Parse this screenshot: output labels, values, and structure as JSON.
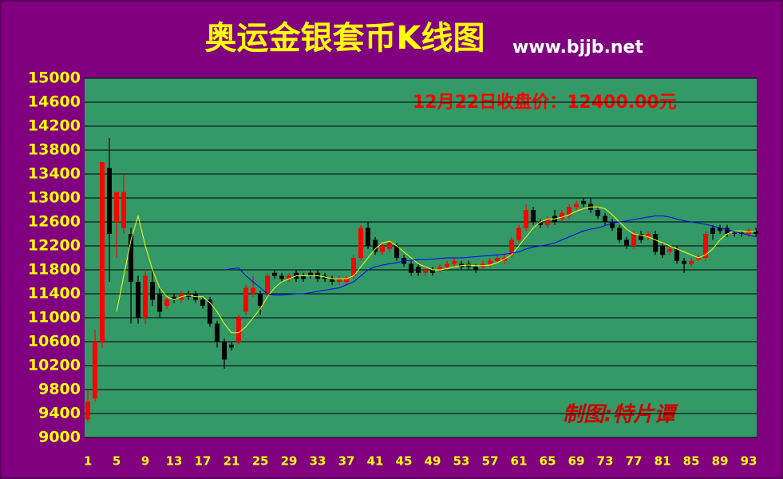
{
  "chart_data": {
    "type": "candlestick",
    "title": "奥运金银套币K线图",
    "subtitle": "www.bjjb.net",
    "annotation": "12月22日收盘价：12400.00元",
    "signature": "制图:特片谭",
    "up_color": "#ff0000",
    "down_color": "#000000",
    "x": [
      1,
      2,
      3,
      4,
      5,
      6,
      7,
      8,
      9,
      10,
      11,
      12,
      13,
      14,
      15,
      16,
      17,
      18,
      19,
      20,
      21,
      22,
      23,
      24,
      25,
      26,
      27,
      28,
      29,
      30,
      31,
      32,
      33,
      34,
      35,
      36,
      37,
      38,
      39,
      40,
      41,
      42,
      43,
      44,
      45,
      46,
      47,
      48,
      49,
      50,
      51,
      52,
      53,
      54,
      55,
      56,
      57,
      58,
      59,
      60,
      61,
      62,
      63,
      64,
      65,
      66,
      67,
      68,
      69,
      70,
      71,
      72,
      73,
      74,
      75,
      76,
      77,
      78,
      79,
      80,
      81,
      82,
      83,
      84,
      85,
      86,
      87,
      88,
      89,
      90,
      91,
      92,
      93,
      94
    ],
    "ohlc": [
      [
        9300,
        9800,
        9250,
        9600
      ],
      [
        9650,
        10800,
        9600,
        10600
      ],
      [
        10600,
        13600,
        10500,
        13600
      ],
      [
        13500,
        14000,
        11600,
        12400
      ],
      [
        12600,
        13100,
        12000,
        13100
      ],
      [
        12500,
        13400,
        12400,
        13100
      ],
      [
        12400,
        12500,
        10900,
        11600
      ],
      [
        11600,
        11700,
        10900,
        11000
      ],
      [
        11000,
        11800,
        10900,
        11700
      ],
      [
        11600,
        11800,
        11200,
        11300
      ],
      [
        11400,
        11500,
        11000,
        11100
      ],
      [
        11200,
        11350,
        11150,
        11300
      ],
      [
        11350,
        11400,
        11250,
        11300
      ],
      [
        11300,
        11450,
        11250,
        11400
      ],
      [
        11400,
        11450,
        11300,
        11350
      ],
      [
        11400,
        11450,
        11250,
        11300
      ],
      [
        11300,
        11350,
        11150,
        11200
      ],
      [
        11300,
        11350,
        10850,
        10900
      ],
      [
        10900,
        10950,
        10500,
        10600
      ],
      [
        10600,
        10650,
        10150,
        10300
      ],
      [
        10550,
        10600,
        10450,
        10500
      ],
      [
        10600,
        11050,
        10550,
        11000
      ],
      [
        11100,
        11550,
        11050,
        11500
      ],
      [
        11400,
        11700,
        11350,
        11500
      ],
      [
        11400,
        11450,
        11050,
        11200
      ],
      [
        11400,
        11750,
        11350,
        11700
      ],
      [
        11750,
        11800,
        11650,
        11700
      ],
      [
        11700,
        11750,
        11600,
        11650
      ],
      [
        11650,
        11750,
        11600,
        11700
      ],
      [
        11750,
        11800,
        11600,
        11650
      ],
      [
        11700,
        11750,
        11600,
        11650
      ],
      [
        11750,
        11800,
        11650,
        11700
      ],
      [
        11750,
        11800,
        11600,
        11650
      ],
      [
        11700,
        11750,
        11600,
        11650
      ],
      [
        11650,
        11700,
        11550,
        11600
      ],
      [
        11600,
        11700,
        11550,
        11650
      ],
      [
        11600,
        11700,
        11550,
        11650
      ],
      [
        11700,
        12050,
        11650,
        12000
      ],
      [
        12000,
        12550,
        11950,
        12500
      ],
      [
        12500,
        12600,
        12150,
        12200
      ],
      [
        12300,
        12350,
        12050,
        12100
      ],
      [
        12100,
        12250,
        12050,
        12200
      ],
      [
        12150,
        12300,
        12100,
        12250
      ],
      [
        12200,
        12250,
        11950,
        12000
      ],
      [
        12000,
        12050,
        11850,
        11900
      ],
      [
        11900,
        11950,
        11700,
        11750
      ],
      [
        11850,
        11900,
        11700,
        11750
      ],
      [
        11750,
        11850,
        11700,
        11800
      ],
      [
        11800,
        11850,
        11700,
        11750
      ],
      [
        11800,
        11900,
        11750,
        11850
      ],
      [
        11850,
        11950,
        11800,
        11900
      ],
      [
        11900,
        12000,
        11850,
        11950
      ],
      [
        11900,
        11950,
        11800,
        11850
      ],
      [
        11900,
        11950,
        11800,
        11850
      ],
      [
        11850,
        11900,
        11750,
        11800
      ],
      [
        11850,
        11950,
        11800,
        11900
      ],
      [
        11900,
        12000,
        11850,
        11950
      ],
      [
        11950,
        12050,
        11900,
        12000
      ],
      [
        11950,
        12050,
        11900,
        12000
      ],
      [
        12050,
        12350,
        12000,
        12300
      ],
      [
        12300,
        12550,
        12250,
        12500
      ],
      [
        12500,
        12900,
        12450,
        12800
      ],
      [
        12800,
        12850,
        12550,
        12600
      ],
      [
        12600,
        12650,
        12500,
        12550
      ],
      [
        12550,
        12700,
        12500,
        12650
      ],
      [
        12700,
        12800,
        12550,
        12600
      ],
      [
        12650,
        12800,
        12600,
        12750
      ],
      [
        12700,
        12900,
        12650,
        12850
      ],
      [
        12850,
        12950,
        12800,
        12900
      ],
      [
        12950,
        13000,
        12850,
        12900
      ],
      [
        12900,
        13000,
        12750,
        12800
      ],
      [
        12800,
        12850,
        12650,
        12700
      ],
      [
        12700,
        12750,
        12550,
        12600
      ],
      [
        12600,
        12650,
        12450,
        12500
      ],
      [
        12500,
        12550,
        12250,
        12300
      ],
      [
        12300,
        12350,
        12150,
        12200
      ],
      [
        12200,
        12450,
        12150,
        12400
      ],
      [
        12400,
        12450,
        12250,
        12300
      ],
      [
        12350,
        12450,
        12300,
        12400
      ],
      [
        12400,
        12450,
        12050,
        12100
      ],
      [
        12200,
        12250,
        12000,
        12050
      ],
      [
        12100,
        12200,
        12050,
        12150
      ],
      [
        12150,
        12200,
        11900,
        11950
      ],
      [
        11950,
        12000,
        11750,
        11900
      ],
      [
        11900,
        12000,
        11850,
        11950
      ],
      [
        11980,
        12050,
        11950,
        12000
      ],
      [
        12000,
        12450,
        11950,
        12400
      ],
      [
        12500,
        12550,
        12300,
        12400
      ],
      [
        12500,
        12550,
        12400,
        12450
      ],
      [
        12500,
        12550,
        12350,
        12400
      ],
      [
        12420,
        12450,
        12350,
        12400
      ],
      [
        12420,
        12450,
        12350,
        12400
      ],
      [
        12400,
        12500,
        12350,
        12450
      ],
      [
        12450,
        12500,
        12350,
        12400
      ]
    ],
    "moving_averages": [
      {
        "color": "#ffff00",
        "values": [
          null,
          null,
          null,
          null,
          11100,
          11700,
          12300,
          12700,
          12200,
          11800,
          11500,
          11350,
          11300,
          11350,
          11380,
          11350,
          11350,
          11250,
          11100,
          10900,
          10750,
          10750,
          10850,
          11000,
          11150,
          11350,
          11500,
          11600,
          11650,
          11700,
          11700,
          11700,
          11700,
          11680,
          11650,
          11650,
          11650,
          11700,
          11850,
          12000,
          12150,
          12250,
          12280,
          12200,
          12100,
          12000,
          11900,
          11850,
          11800,
          11800,
          11820,
          11850,
          11870,
          11880,
          11870,
          11870,
          11880,
          11920,
          11980,
          12050,
          12200,
          12350,
          12500,
          12600,
          12650,
          12650,
          12680,
          12720,
          12780,
          12820,
          12850,
          12850,
          12820,
          12720,
          12600,
          12480,
          12400,
          12380,
          12350,
          12300,
          12250,
          12200,
          12150,
          12100,
          12050,
          12000,
          12050,
          12150,
          12300,
          12400,
          12450,
          12450,
          12430,
          12450
        ]
      },
      {
        "color": "#0000ff",
        "values": [
          null,
          null,
          null,
          null,
          null,
          null,
          null,
          null,
          null,
          null,
          null,
          null,
          null,
          null,
          null,
          null,
          null,
          null,
          null,
          11800,
          11820,
          11830,
          11700,
          11600,
          11500,
          11400,
          11380,
          11380,
          11390,
          11400,
          11400,
          11420,
          11440,
          11460,
          11480,
          11500,
          11550,
          11600,
          11700,
          11800,
          11850,
          11880,
          11900,
          11920,
          11950,
          11960,
          11970,
          11970,
          11980,
          11990,
          12000,
          12000,
          12000,
          12010,
          12020,
          12030,
          12040,
          12050,
          12060,
          12080,
          12100,
          12150,
          12180,
          12200,
          12220,
          12250,
          12300,
          12350,
          12400,
          12450,
          12480,
          12500,
          12540,
          12580,
          12600,
          12620,
          12640,
          12660,
          12680,
          12700,
          12700,
          12680,
          12650,
          12620,
          12600,
          12580,
          12560,
          12530,
          12500,
          12470,
          12440,
          12410,
          12380,
          12350
        ]
      }
    ],
    "xlim": [
      0.55,
      94.1
    ],
    "xticks": [
      1,
      5,
      9,
      13,
      17,
      21,
      25,
      29,
      33,
      37,
      41,
      45,
      49,
      53,
      57,
      61,
      65,
      69,
      73,
      77,
      81,
      85,
      89,
      93
    ],
    "ylim": [
      9000,
      15000
    ],
    "yticks": [
      9000,
      9400,
      9800,
      10200,
      10600,
      11000,
      11400,
      11800,
      12200,
      12600,
      13000,
      13400,
      13800,
      14200,
      14600,
      15000
    ],
    "grid": true
  }
}
